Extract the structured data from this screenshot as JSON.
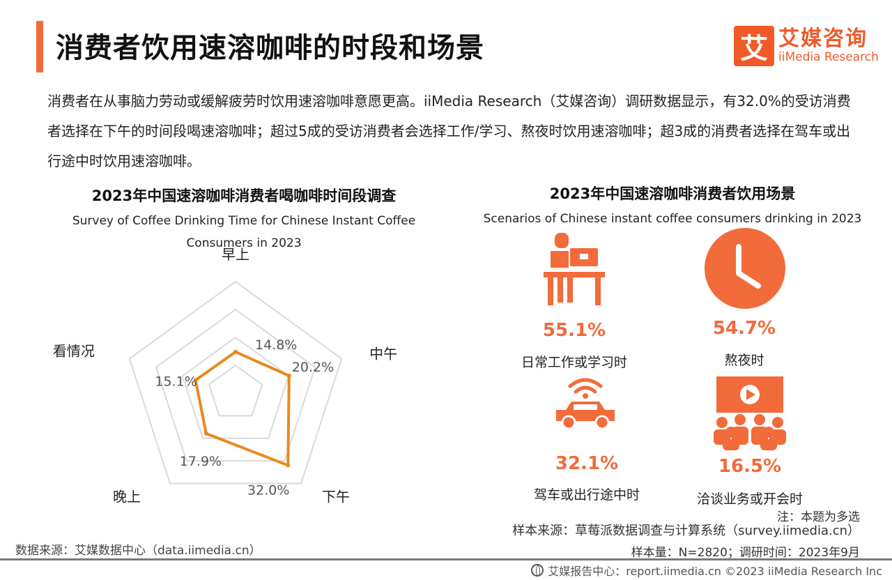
{
  "header": {
    "title": "消费者饮用速溶咖啡的时段和场景",
    "brand_mark": "艾",
    "brand_cn": "艾媒咨询",
    "brand_en": "iiMedia Research"
  },
  "summary": "消费者在从事脑力劳动或缓解疲劳时饮用速溶咖啡意愿更高。iiMedia Research（艾媒咨询）调研数据显示，有32.0%的受访消费者选择在下午的时间段喝速溶咖啡；超过5成的受访消费者会选择工作/学习、熬夜时饮用速溶咖啡；超3成的消费者选择在驾车或出行途中时饮用速溶咖啡。",
  "chart_data": [
    {
      "type": "radar",
      "title": "2023年中国速溶咖啡消费者喝咖啡时间段调查",
      "subtitle_line1": "Survey of Coffee Drinking Time for Chinese Instant Coffee",
      "subtitle_line2": "Consumers in 2023",
      "categories": [
        "早上",
        "中午",
        "下午",
        "晚上",
        "看情况"
      ],
      "values": [
        14.8,
        20.2,
        32.0,
        17.9,
        15.1
      ],
      "value_labels": [
        "14.8%",
        "20.2%",
        "32.0%",
        "17.9%",
        "15.1%"
      ],
      "rlim": [
        0,
        40
      ],
      "grid_levels": 4,
      "line_color": "#e8891e",
      "grid_color": "#d9d9d9"
    },
    {
      "type": "table",
      "title": "2023年中国速溶咖啡消费者饮用场景",
      "subtitle": "Scenarios of Chinese instant coffee consumers drinking in 2023",
      "categories": [
        "日常工作或学习时",
        "熬夜时",
        "驾车或出行途中时",
        "洽谈业务或开会时"
      ],
      "values": [
        55.1,
        54.7,
        32.1,
        16.5
      ],
      "value_labels": [
        "55.1%",
        "54.7%",
        "32.1%",
        "16.5%"
      ],
      "icons": [
        "desk-worker-icon",
        "clock-icon",
        "car-signal-icon",
        "meeting-icon"
      ],
      "icon_color": "#f26b3a"
    }
  ],
  "notes": {
    "note": "注：本题为多选",
    "sample_source": "样本来源：草莓派数据调查与计算系统（survey.iimedia.cn）",
    "data_source": "数据来源：艾媒数据中心（data.iimedia.cn）",
    "sample_size": "样本量：N=2820；调研时间：2023年9月",
    "footer": "艾媒报告中心：report.iimedia.cn  ©2023  iiMedia Research  Inc"
  }
}
